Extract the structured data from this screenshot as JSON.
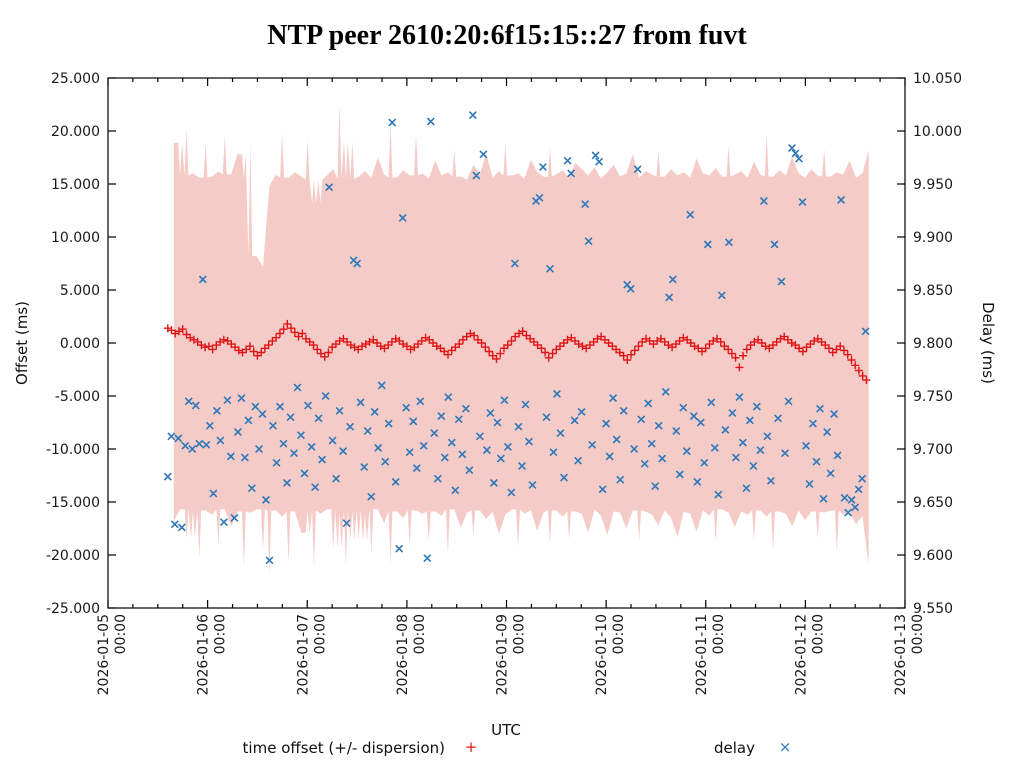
{
  "chart_data": {
    "type": "scatter",
    "title": "NTP peer 2610:20:6f15:15::27 from fuvt",
    "xlabel": "UTC",
    "ylabel_left": "Offset (ms)",
    "ylabel_right": "Delay (ms)",
    "ylim_left": [
      -25,
      25
    ],
    "ylim_right": [
      9.55,
      10.05
    ],
    "x_range": [
      "2026-01-05 00:00",
      "2026-01-13 00:00"
    ],
    "grid": false,
    "legend_position": "below",
    "y_left_ticks": [
      "25.000",
      "20.000",
      "15.000",
      "10.000",
      "5.000",
      "0.000",
      "-5.000",
      "-10.000",
      "-15.000",
      "-20.000",
      "-25.000"
    ],
    "y_right_ticks": [
      "10.050",
      "10.000",
      "9.950",
      "9.900",
      "9.850",
      "9.800",
      "9.750",
      "9.700",
      "9.650",
      "9.600",
      "9.550"
    ],
    "x_tick_dates": [
      "2026-01-05",
      "2026-01-06",
      "2026-01-07",
      "2026-01-08",
      "2026-01-09",
      "2026-01-10",
      "2026-01-11",
      "2026-01-12",
      "2026-01-13"
    ],
    "x_tick_time": "00:00",
    "minor_x_ticks_per_day": 3,
    "colors": {
      "dispersion_fill": "#f5cbc8",
      "offset": "#e01414",
      "delay": "#2d78b9",
      "axis": "#000000",
      "tick_text": "#1a1a1a"
    },
    "legend": [
      {
        "label": "time offset (+/- dispersion)",
        "marker_char": "+",
        "color": "#e01414"
      },
      {
        "label": "delay",
        "marker_char": "×",
        "color": "#2d78b9"
      }
    ],
    "series": {
      "dispersion_band": {
        "axis": "left",
        "t0_days": 0.66,
        "dt_days": 0.064,
        "top": [
          18.9,
          15.8,
          20.3,
          16.0,
          15.6,
          18.8,
          15.7,
          16.2,
          19.6,
          15.9,
          17.8,
          15.5,
          18.9,
          8.2,
          7.2,
          14.8,
          15.9,
          19.9,
          15.6,
          16.1,
          15.7,
          19.1,
          15.4,
          13.2,
          15.8,
          16.4,
          22.7,
          15.5,
          19.0,
          15.7,
          16.2,
          15.6,
          17.5,
          15.9,
          20.9,
          15.6,
          16.3,
          15.8,
          19.8,
          16.0,
          15.5,
          17.2,
          15.8,
          16.1,
          18.2,
          15.7,
          15.4,
          16.8,
          15.9,
          17.9,
          15.6,
          16.2,
          18.8,
          15.8,
          16.0,
          15.5,
          17.3,
          16.1,
          15.7,
          18.4,
          15.9,
          16.3,
          15.6,
          17.0,
          16.4,
          15.8,
          16.6,
          15.5,
          16.1,
          16.8,
          15.7,
          16.0,
          17.8,
          15.6,
          16.2,
          15.9,
          18.1,
          15.7,
          16.4,
          15.8,
          16.1,
          15.6,
          17.4,
          16.0,
          15.8,
          16.5,
          15.7,
          18.6,
          15.9,
          16.2,
          15.6,
          17.1,
          15.9,
          19.7,
          15.7,
          16.3,
          15.8,
          17.6,
          16.0,
          15.6,
          16.4,
          15.8,
          18.3,
          15.7,
          16.1,
          15.9,
          17.2,
          15.6,
          16.0,
          18.2
        ],
        "bottom": [
          -16.8,
          -15.7,
          -18.4,
          -15.9,
          -20.3,
          -15.8,
          -16.2,
          -19.1,
          -15.7,
          -17.3,
          -15.9,
          -21.2,
          -16.0,
          -15.7,
          -19.6,
          -21.8,
          -15.8,
          -16.4,
          -20.7,
          -15.9,
          -17.9,
          -15.8,
          -21.3,
          -16.1,
          -15.7,
          -19.4,
          -16.0,
          -21.0,
          -15.8,
          -18.6,
          -16.2,
          -19.8,
          -15.7,
          -17.0,
          -20.9,
          -15.9,
          -16.5,
          -19.2,
          -15.8,
          -16.1,
          -18.8,
          -15.9,
          -16.3,
          -19.9,
          -15.7,
          -17.4,
          -16.0,
          -18.2,
          -15.8,
          -16.6,
          -15.9,
          -18.0,
          -16.2,
          -15.7,
          -19.3,
          -16.1,
          -15.8,
          -17.7,
          -16.0,
          -18.9,
          -15.8,
          -16.4,
          -18.5,
          -15.9,
          -16.1,
          -17.9,
          -15.7,
          -16.3,
          -18.1,
          -15.9,
          -16.0,
          -17.5,
          -15.8,
          -18.7,
          -15.9,
          -16.2,
          -17.2,
          -15.8,
          -16.5,
          -18.3,
          -15.9,
          -16.1,
          -17.8,
          -15.8,
          -16.3,
          -18.8,
          -15.7,
          -16.0,
          -17.4,
          -15.9,
          -16.2,
          -18.6,
          -15.8,
          -16.4,
          -19.5,
          -15.9,
          -16.1,
          -17.3,
          -15.8,
          -16.7,
          -15.9,
          -18.4,
          -16.0,
          -15.8,
          -19.8,
          -16.2,
          -15.9,
          -17.1,
          -16.3,
          -20.9
        ]
      },
      "offset": {
        "axis": "left",
        "t0_days": 0.6,
        "dt_days": 0.0375,
        "values": [
          1.4,
          1.2,
          0.9,
          1.1,
          1.3,
          0.8,
          0.5,
          0.3,
          0.1,
          -0.2,
          -0.4,
          -0.3,
          -0.6,
          -0.2,
          0.1,
          0.3,
          0.2,
          -0.1,
          -0.4,
          -0.7,
          -0.9,
          -0.6,
          -0.3,
          -0.8,
          -1.2,
          -0.9,
          -0.5,
          -0.2,
          0.2,
          0.5,
          0.9,
          1.3,
          1.8,
          1.4,
          1.0,
          0.6,
          0.9,
          0.4,
          0.1,
          -0.2,
          -0.6,
          -1.0,
          -1.3,
          -0.9,
          -0.4,
          -0.1,
          0.2,
          0.4,
          0.1,
          -0.2,
          -0.4,
          -0.6,
          -0.3,
          -0.1,
          0.1,
          0.3,
          0.0,
          -0.3,
          -0.5,
          -0.2,
          0.1,
          0.4,
          0.2,
          -0.1,
          -0.3,
          -0.6,
          -0.4,
          -0.1,
          0.2,
          0.5,
          0.3,
          0.0,
          -0.3,
          -0.5,
          -0.8,
          -1.1,
          -0.7,
          -0.4,
          -0.1,
          0.3,
          0.6,
          0.9,
          0.7,
          0.3,
          0.0,
          -0.4,
          -0.8,
          -1.2,
          -1.5,
          -1.0,
          -0.5,
          -0.2,
          0.2,
          0.6,
          0.9,
          1.1,
          0.7,
          0.4,
          0.1,
          -0.2,
          -0.5,
          -0.9,
          -1.4,
          -1.0,
          -0.6,
          -0.3,
          0.0,
          0.3,
          0.5,
          0.2,
          -0.1,
          -0.3,
          -0.5,
          -0.2,
          0.1,
          0.4,
          0.6,
          0.3,
          0.0,
          -0.3,
          -0.6,
          -0.9,
          -1.2,
          -1.6,
          -1.1,
          -0.7,
          -0.3,
          0.1,
          0.4,
          0.2,
          -0.1,
          0.2,
          0.4,
          0.1,
          -0.2,
          -0.4,
          -0.1,
          0.2,
          0.5,
          0.3,
          0.0,
          -0.3,
          -0.5,
          -0.8,
          -0.5,
          -0.1,
          0.2,
          0.4,
          0.1,
          -0.3,
          -0.6,
          -1.0,
          -1.4,
          -2.3,
          -1.2,
          -0.6,
          -0.2,
          0.1,
          0.3,
          0.0,
          -0.3,
          -0.5,
          -0.2,
          0.1,
          0.4,
          0.6,
          0.3,
          0.0,
          -0.2,
          -0.5,
          -0.8,
          -0.4,
          -0.1,
          0.2,
          0.4,
          0.1,
          -0.2,
          -0.5,
          -0.9,
          -0.6,
          -0.3,
          -0.7,
          -1.1,
          -1.6,
          -2.1,
          -2.6,
          -3.1,
          -3.5
        ]
      },
      "delay": {
        "axis": "right",
        "t0_days": 0.6,
        "dt_days": 0.0352,
        "values": [
          9.674,
          9.712,
          9.629,
          9.71,
          9.626,
          9.703,
          9.745,
          9.7,
          9.741,
          9.705,
          9.86,
          9.704,
          9.722,
          9.658,
          9.736,
          9.708,
          9.631,
          9.746,
          9.693,
          9.635,
          9.716,
          9.748,
          9.692,
          9.727,
          9.663,
          9.74,
          9.7,
          9.733,
          9.652,
          9.595,
          9.722,
          9.687,
          9.74,
          9.705,
          9.668,
          9.73,
          9.696,
          9.758,
          9.713,
          9.677,
          9.741,
          9.702,
          9.664,
          9.729,
          9.69,
          9.75,
          9.947,
          9.708,
          9.672,
          9.736,
          9.698,
          9.63,
          9.721,
          9.878,
          9.875,
          9.744,
          9.683,
          9.717,
          9.655,
          9.735,
          9.701,
          9.76,
          9.688,
          9.724,
          10.008,
          9.669,
          9.606,
          9.918,
          9.739,
          9.697,
          9.726,
          9.682,
          9.745,
          9.703,
          9.597,
          10.009,
          9.715,
          9.672,
          9.731,
          9.692,
          9.749,
          9.706,
          9.661,
          9.728,
          9.695,
          9.738,
          9.68,
          10.015,
          9.958,
          9.712,
          9.978,
          9.699,
          9.734,
          9.668,
          9.725,
          9.691,
          9.746,
          9.702,
          9.659,
          9.875,
          9.721,
          9.684,
          9.742,
          9.707,
          9.666,
          9.934,
          9.937,
          9.966,
          9.73,
          9.87,
          9.697,
          9.752,
          9.715,
          9.673,
          9.972,
          9.96,
          9.727,
          9.689,
          9.735,
          9.931,
          9.896,
          9.704,
          9.977,
          9.971,
          9.662,
          9.724,
          9.693,
          9.748,
          9.709,
          9.671,
          9.736,
          9.855,
          9.851,
          9.7,
          9.964,
          9.728,
          9.686,
          9.743,
          9.705,
          9.665,
          9.722,
          9.691,
          9.754,
          9.843,
          9.86,
          9.717,
          9.676,
          9.739,
          9.698,
          9.921,
          9.731,
          9.669,
          9.725,
          9.687,
          9.893,
          9.744,
          9.701,
          9.657,
          9.845,
          9.718,
          9.895,
          9.734,
          9.692,
          9.749,
          9.706,
          9.663,
          9.727,
          9.684,
          9.74,
          9.699,
          9.934,
          9.712,
          9.67,
          9.893,
          9.729,
          9.858,
          9.696,
          9.745,
          9.984,
          9.979,
          9.974,
          9.933,
          9.703,
          9.667,
          9.724,
          9.688,
          9.738,
          9.653,
          9.716,
          9.677,
          9.733,
          9.694,
          9.935,
          9.654,
          9.64,
          9.652,
          9.645,
          9.662,
          9.672,
          9.811
        ]
      }
    }
  }
}
